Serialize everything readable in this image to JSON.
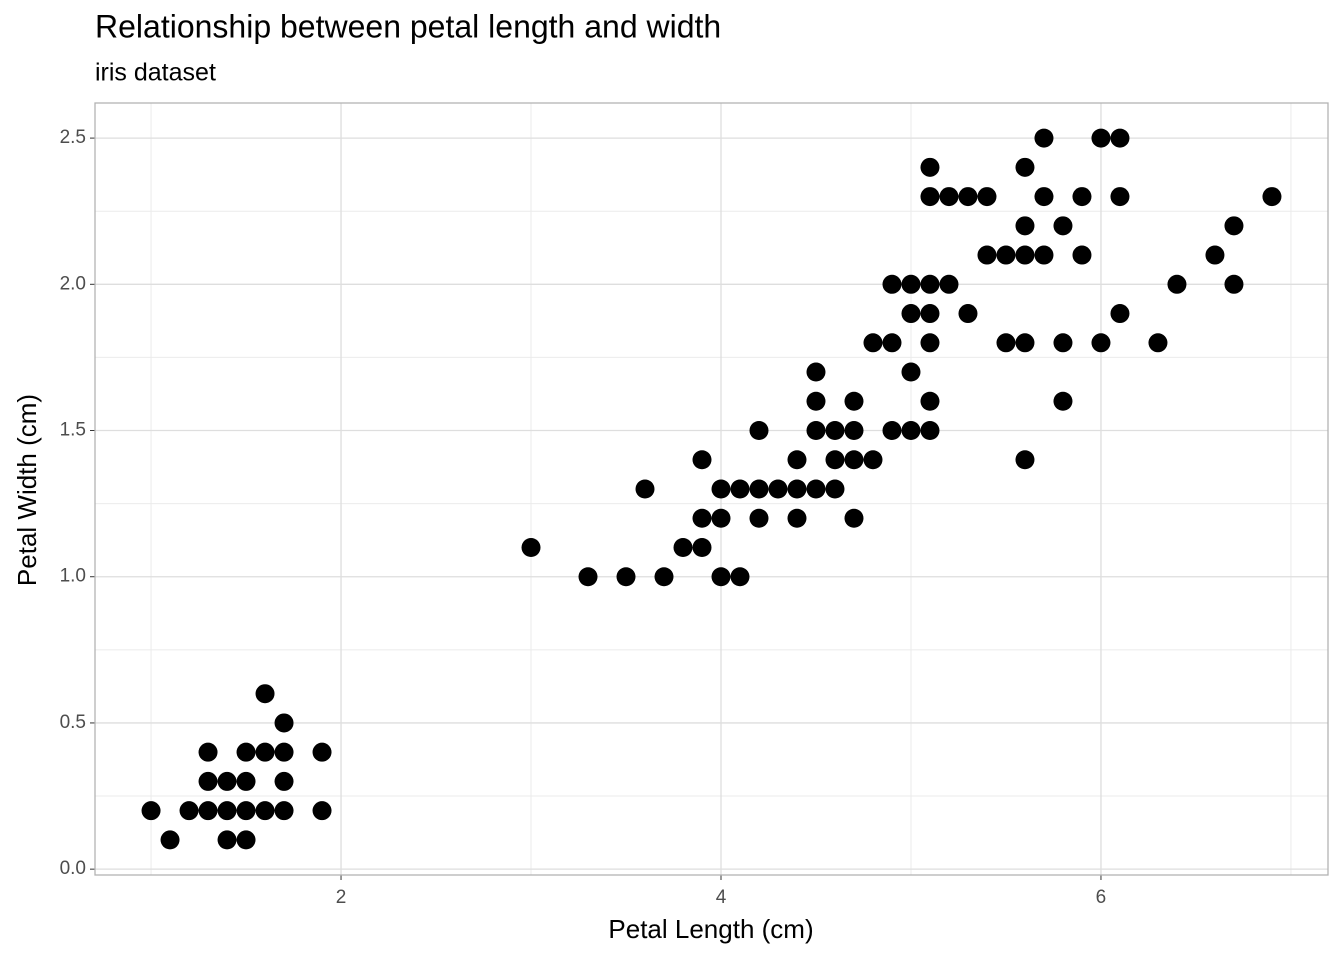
{
  "chart_data": {
    "type": "scatter",
    "title": "Relationship between petal length and width",
    "subtitle": "iris dataset",
    "x_label": "Petal Length (cm)",
    "y_label": "Petal Width (cm)",
    "color": "#000000",
    "grid": true,
    "xlim": [
      0.705,
      7.195
    ],
    "ylim": [
      -0.02,
      2.62
    ],
    "xticks": [
      2,
      4,
      6
    ],
    "yticks": [
      {
        "value": 0,
        "label": "0.0"
      },
      0.5,
      {
        "value": 1,
        "label": "1.0"
      },
      1.5,
      {
        "value": 2,
        "label": "2.0"
      },
      2.5
    ],
    "x_minor_grid": [
      1,
      3,
      5,
      7
    ],
    "y_minor_grid": [
      0.25,
      0.75,
      1.25,
      1.75,
      2.25
    ],
    "x": [
      1.0,
      1.1,
      1.2,
      1.3,
      1.3,
      1.3,
      1.4,
      1.4,
      1.4,
      1.5,
      1.5,
      1.5,
      1.5,
      1.6,
      1.6,
      1.6,
      1.7,
      1.7,
      1.7,
      1.7,
      1.9,
      1.9,
      3.0,
      3.3,
      3.5,
      3.6,
      3.7,
      3.8,
      3.9,
      3.9,
      3.9,
      4.0,
      4.0,
      4.0,
      4.1,
      4.1,
      4.2,
      4.2,
      4.2,
      4.3,
      4.4,
      4.4,
      4.4,
      4.5,
      4.5,
      4.5,
      4.5,
      4.6,
      4.6,
      4.6,
      4.7,
      4.7,
      4.7,
      4.7,
      4.8,
      4.8,
      4.9,
      4.9,
      4.9,
      5.0,
      5.0,
      5.0,
      5.0,
      5.1,
      5.1,
      5.1,
      5.1,
      5.1,
      5.1,
      5.1,
      5.2,
      5.2,
      5.3,
      5.3,
      5.4,
      5.4,
      5.5,
      5.5,
      5.6,
      5.6,
      5.6,
      5.6,
      5.6,
      5.7,
      5.7,
      5.7,
      5.8,
      5.8,
      5.8,
      5.9,
      5.9,
      6.0,
      6.0,
      6.1,
      6.1,
      6.1,
      6.3,
      6.4,
      6.6,
      6.7,
      6.7,
      6.9
    ],
    "y": [
      0.2,
      0.1,
      0.2,
      0.2,
      0.3,
      0.4,
      0.2,
      0.3,
      0.1,
      0.4,
      0.3,
      0.2,
      0.1,
      0.6,
      0.4,
      0.2,
      0.5,
      0.4,
      0.3,
      0.2,
      0.4,
      0.2,
      1.1,
      1.0,
      1.0,
      1.3,
      1.0,
      1.1,
      1.4,
      1.2,
      1.1,
      1.3,
      1.2,
      1.0,
      1.3,
      1.0,
      1.5,
      1.3,
      1.2,
      1.3,
      1.4,
      1.3,
      1.2,
      1.7,
      1.6,
      1.5,
      1.3,
      1.5,
      1.4,
      1.3,
      1.6,
      1.5,
      1.4,
      1.2,
      1.8,
      1.4,
      2.0,
      1.8,
      1.5,
      2.0,
      1.9,
      1.7,
      1.5,
      2.4,
      2.3,
      2.0,
      1.9,
      1.8,
      1.6,
      1.5,
      2.3,
      2.0,
      2.3,
      1.9,
      2.3,
      2.1,
      2.1,
      1.8,
      2.4,
      2.2,
      2.1,
      1.8,
      1.4,
      2.5,
      2.3,
      2.1,
      2.2,
      1.8,
      1.6,
      2.3,
      2.1,
      2.5,
      1.8,
      2.5,
      2.3,
      1.9,
      1.8,
      2.0,
      2.1,
      2.2,
      2.0,
      2.3
    ]
  }
}
